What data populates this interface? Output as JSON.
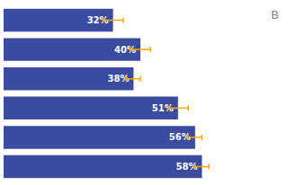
{
  "chart_data": {
    "type": "bar",
    "orientation": "horizontal",
    "values": [
      32,
      40,
      38,
      51,
      56,
      58
    ],
    "errors": [
      3,
      3,
      2,
      3,
      2,
      2
    ],
    "value_labels": [
      "32%",
      "40%",
      "38%",
      "51%",
      "56%",
      "58%"
    ],
    "data_labels": true,
    "color": "#3B4BA0",
    "error_color": "#FFA500",
    "annotation": "B",
    "xlim": [
      0,
      68
    ],
    "tick_labels": false,
    "grid": false
  }
}
